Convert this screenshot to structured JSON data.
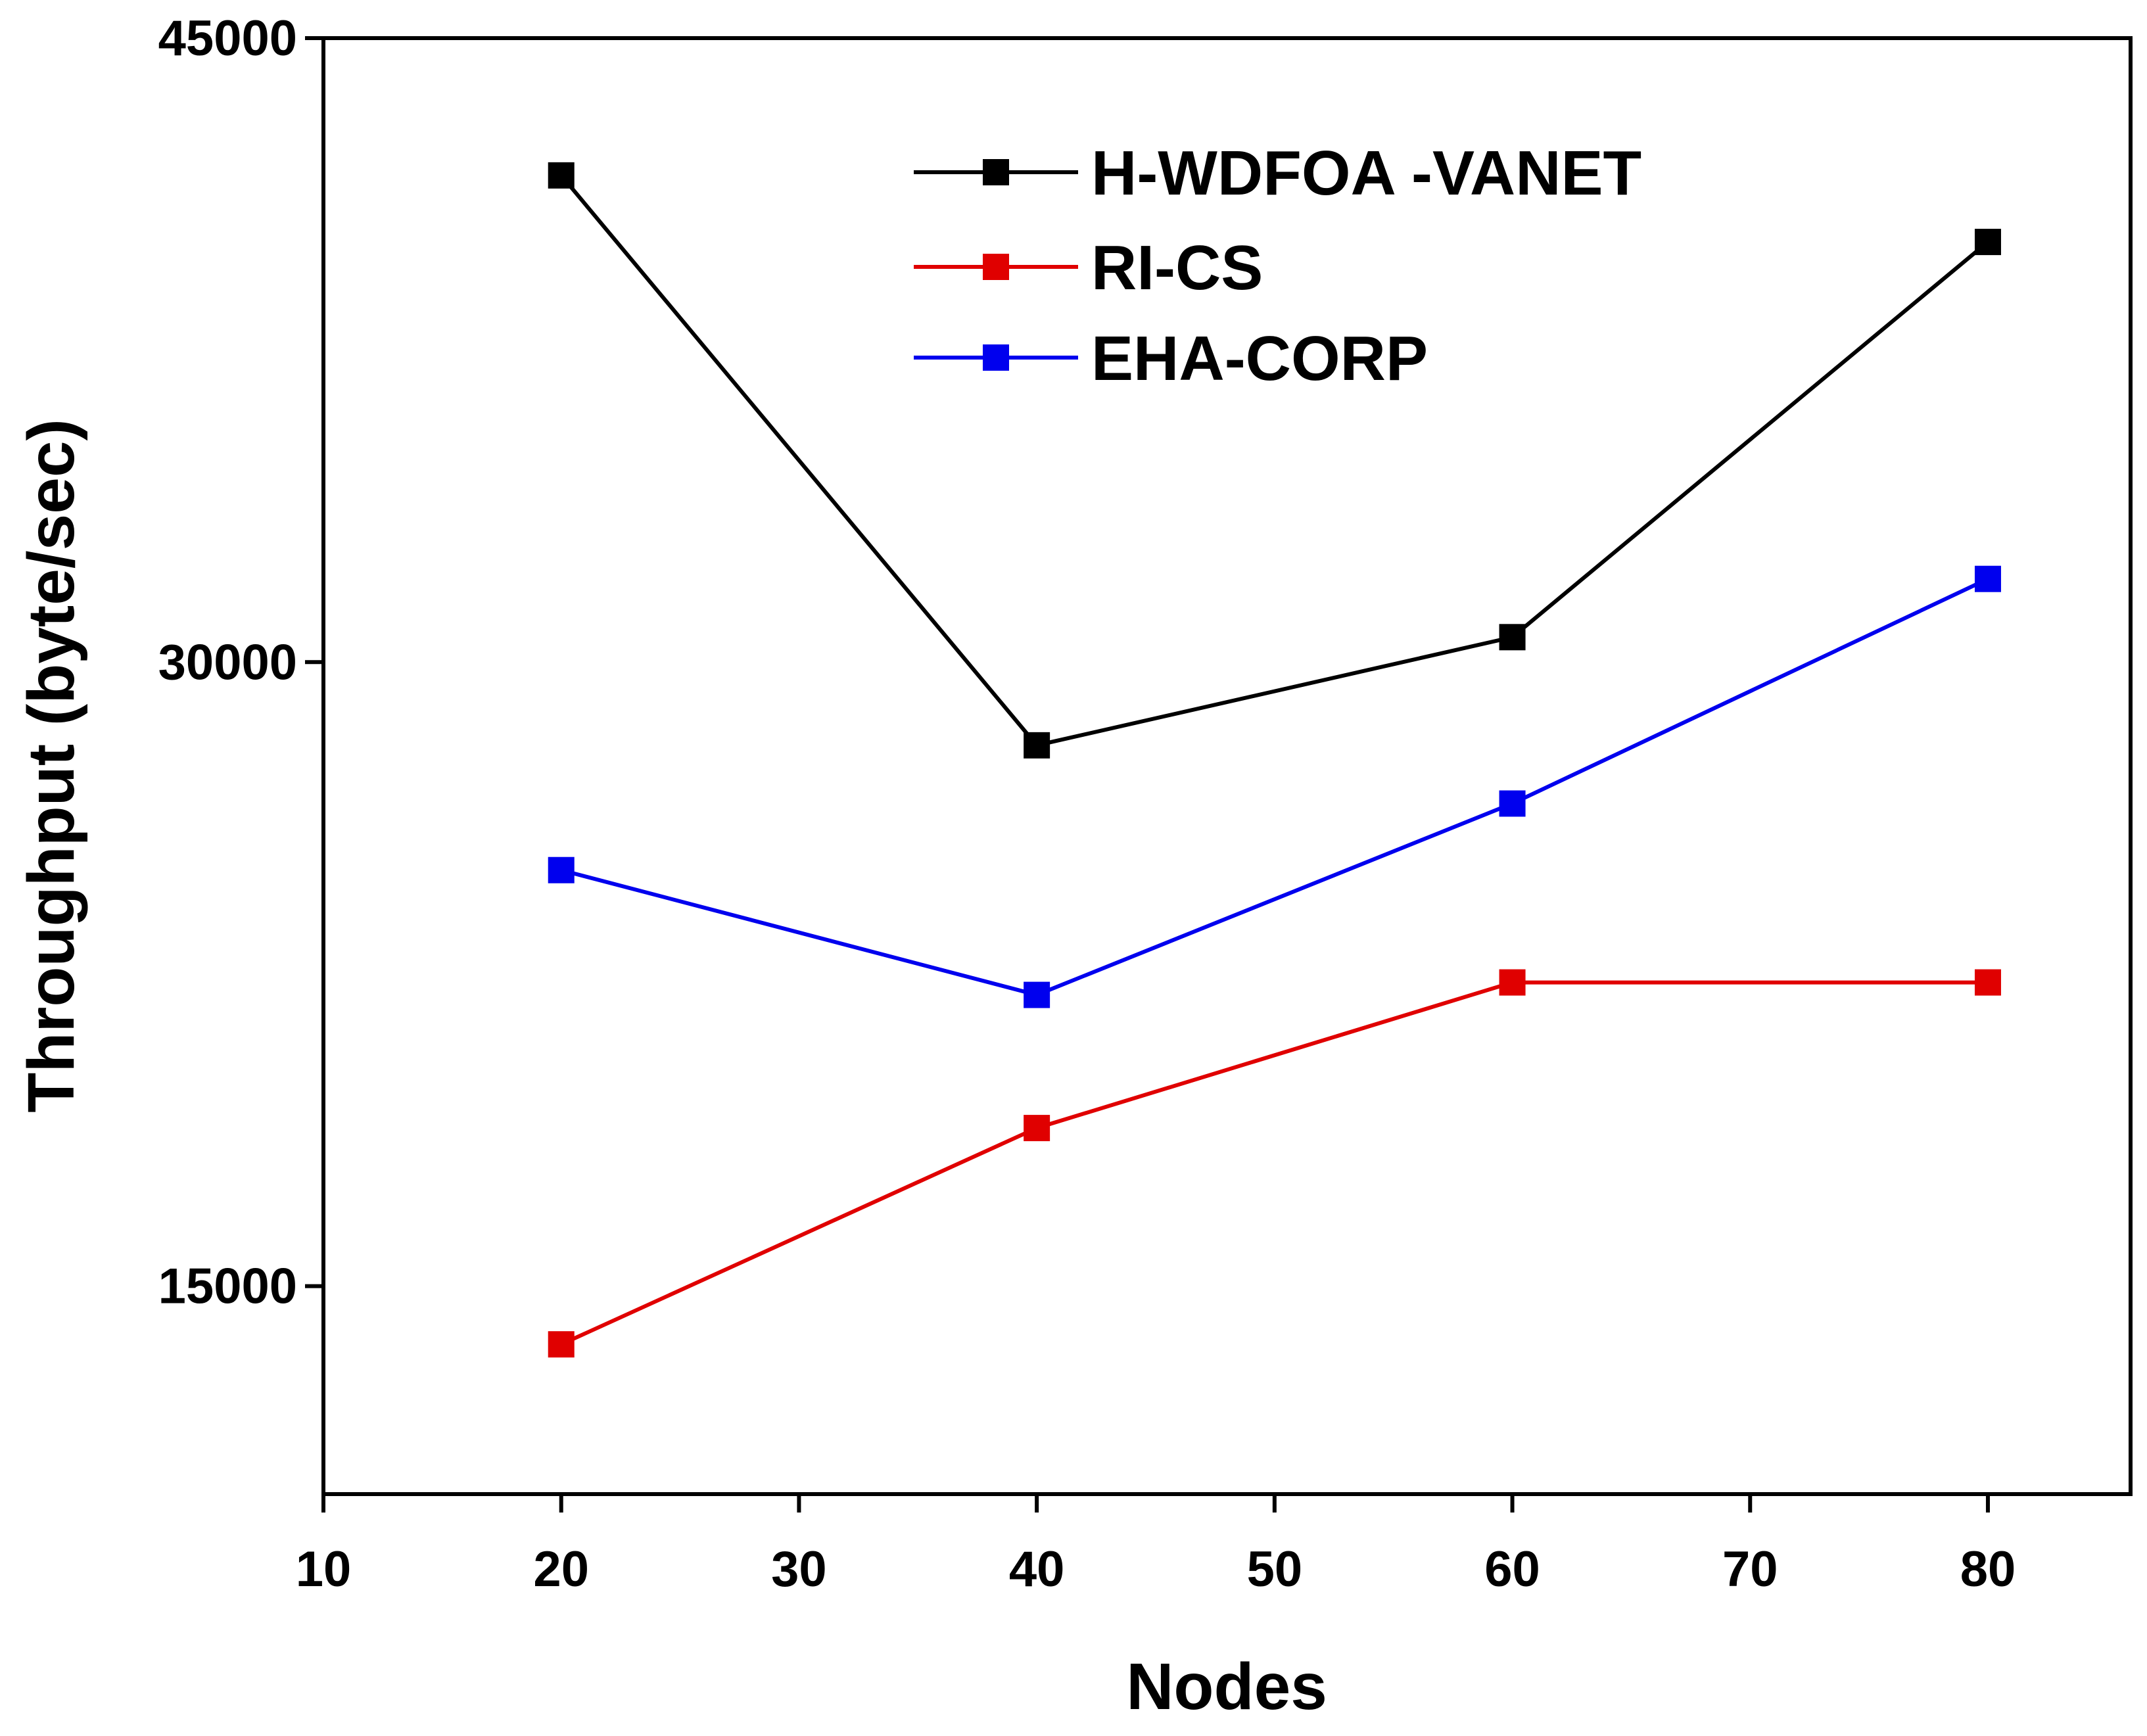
{
  "chart_data": {
    "type": "line",
    "title": "",
    "xlabel": "Nodes",
    "ylabel": "Throughput (byte/sec)",
    "xlim": [
      10,
      86
    ],
    "ylim": [
      10000,
      45000
    ],
    "xticks": [
      10,
      20,
      30,
      40,
      50,
      60,
      70,
      80
    ],
    "yticks": [
      15000,
      30000,
      45000
    ],
    "legend_position": "top-center",
    "series": [
      {
        "name": "H-WDFOA -VANET",
        "color": "#000000",
        "marker": "square",
        "x": [
          20,
          40,
          60,
          80
        ],
        "values": [
          41700,
          28000,
          30600,
          40100
        ]
      },
      {
        "name": "RI-CS",
        "color": "#e00000",
        "marker": "square",
        "x": [
          20,
          40,
          60,
          80
        ],
        "values": [
          13600,
          18800,
          22300,
          22300
        ]
      },
      {
        "name": "EHA-CORP",
        "color": "#0000ee",
        "marker": "square",
        "x": [
          20,
          40,
          60,
          80
        ],
        "values": [
          25000,
          22000,
          26600,
          32000
        ]
      }
    ]
  }
}
